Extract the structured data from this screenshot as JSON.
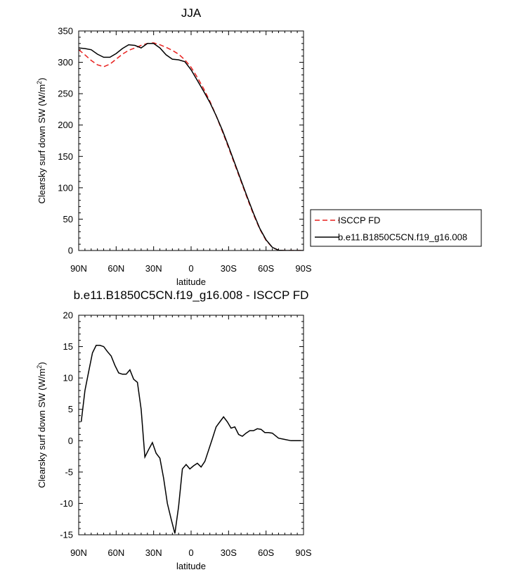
{
  "chart_data": [
    {
      "type": "line",
      "title": "JJA",
      "xlabel": "latitude",
      "ylabel": "Clearsky surf down SW (W/m²)",
      "ylim": [
        0,
        350
      ],
      "yticks": [
        0,
        50,
        100,
        150,
        200,
        250,
        300,
        350
      ],
      "xlim": [
        90,
        -90
      ],
      "xticks": [
        90,
        60,
        30,
        0,
        -30,
        -60,
        -90
      ],
      "xtick_labels": [
        "90N",
        "60N",
        "30N",
        "0",
        "30S",
        "60S",
        "90S"
      ],
      "grid": false,
      "legend_position": "right",
      "series": [
        {
          "name": "ISCCP FD",
          "color": "#e8211f",
          "style": "dashed",
          "x": [
            90,
            85,
            80,
            75,
            70,
            65,
            60,
            55,
            50,
            45,
            40,
            35,
            30,
            25,
            20,
            15,
            10,
            5,
            0,
            -5,
            -10,
            -15,
            -20,
            -25,
            -30,
            -35,
            -40,
            -45,
            -50,
            -55,
            -60,
            -65,
            -70,
            -75,
            -80,
            -85,
            -90
          ],
          "y": [
            320,
            312,
            303,
            296,
            293,
            297,
            305,
            313,
            319,
            323,
            327,
            330,
            331,
            328,
            324,
            319,
            313,
            304,
            292,
            276,
            258,
            238,
            215,
            190,
            164,
            137,
            110,
            83,
            57,
            34,
            16,
            5,
            0.5,
            0,
            0,
            0,
            0
          ]
        },
        {
          "name": "b.e11.B1850C5CN.f19_g16.008",
          "color": "#000000",
          "style": "solid",
          "x": [
            90,
            85,
            80,
            75,
            70,
            65,
            60,
            55,
            50,
            45,
            40,
            35,
            30,
            25,
            20,
            15,
            10,
            5,
            0,
            -5,
            -10,
            -15,
            -20,
            -25,
            -30,
            -35,
            -40,
            -45,
            -50,
            -55,
            -60,
            -65,
            -70,
            -75,
            -80,
            -85,
            -90
          ],
          "y": [
            323,
            322,
            320,
            313,
            308,
            308,
            314,
            322,
            328,
            327,
            323,
            330,
            330,
            323,
            312,
            305,
            304,
            301,
            288,
            271,
            254,
            236,
            215,
            192,
            166,
            139,
            112,
            85,
            59,
            35,
            17,
            5,
            0.5,
            0,
            0,
            0,
            0
          ]
        }
      ]
    },
    {
      "type": "line",
      "title": "b.e11.B1850C5CN.f19_g16.008 - ISCCP FD",
      "xlabel": "latitude",
      "ylabel": "Clearsky surf down SW (W/m²)",
      "ylim": [
        -15,
        20
      ],
      "yticks": [
        -15,
        -10,
        -5,
        0,
        5,
        10,
        15,
        20
      ],
      "xlim": [
        90,
        -90
      ],
      "xticks": [
        90,
        60,
        30,
        0,
        -30,
        -60,
        -90
      ],
      "xtick_labels": [
        "90N",
        "60N",
        "30N",
        "0",
        "30S",
        "60S",
        "90S"
      ],
      "grid": false,
      "series": [
        {
          "name": "",
          "color": "#000000",
          "style": "solid",
          "x": [
            88,
            85,
            82,
            79,
            76,
            73,
            70,
            67,
            64,
            61,
            58,
            55,
            52,
            49,
            46,
            43,
            40,
            37,
            34,
            31,
            28,
            25,
            22,
            19,
            16,
            13,
            10,
            7,
            4,
            1,
            -2,
            -5,
            -8,
            -11,
            -14,
            -17,
            -20,
            -23,
            -26,
            -29,
            -32,
            -35,
            -38,
            -41,
            -44,
            -47,
            -50,
            -53,
            -56,
            -59,
            -62,
            -65,
            -70,
            -75,
            -80,
            -85,
            -88
          ],
          "y": [
            3.0,
            8.0,
            11.0,
            14.0,
            15.2,
            15.2,
            15.0,
            14.2,
            13.5,
            12.0,
            10.8,
            10.6,
            10.6,
            11.3,
            9.8,
            9.3,
            5.0,
            -2.6,
            -1.4,
            -0.3,
            -2.0,
            -2.8,
            -6.0,
            -10.0,
            -12.5,
            -14.8,
            -10.5,
            -4.5,
            -3.8,
            -4.5,
            -4.0,
            -3.6,
            -4.2,
            -3.3,
            -1.5,
            0.3,
            2.2,
            3.0,
            3.8,
            3.0,
            2.0,
            2.2,
            1.0,
            0.7,
            1.2,
            1.6,
            1.6,
            1.9,
            1.8,
            1.3,
            1.3,
            1.2,
            0.4,
            0.2,
            0.0,
            0.0,
            0.0
          ]
        }
      ]
    }
  ]
}
